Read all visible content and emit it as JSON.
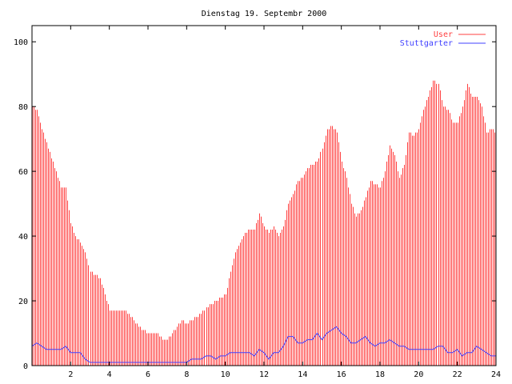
{
  "chart_data": {
    "type": "bar",
    "title": "Dienstag 19. Septembr 2000",
    "xlabel": "",
    "ylabel": "",
    "xlim": [
      0,
      24
    ],
    "ylim": [
      0,
      105
    ],
    "x_ticks": [
      2,
      4,
      6,
      8,
      10,
      12,
      14,
      16,
      18,
      20,
      22,
      24
    ],
    "y_ticks": [
      0,
      20,
      40,
      60,
      80,
      100
    ],
    "legend_position": "top-right",
    "x_step_hours": 0.25,
    "series": [
      {
        "name": "User",
        "style": "impulses",
        "color": "#ff4040",
        "values": [
          80,
          79,
          73,
          69,
          64,
          60,
          55,
          55,
          44,
          40,
          38,
          35,
          29,
          28,
          27,
          22,
          17,
          17,
          17,
          17,
          16,
          14,
          12,
          11,
          10,
          10,
          10,
          8,
          8,
          10,
          12,
          14,
          13,
          14,
          15,
          16,
          18,
          19,
          20,
          21,
          22,
          29,
          35,
          38,
          41,
          42,
          42,
          47,
          43,
          41,
          43,
          40,
          43,
          50,
          53,
          57,
          58,
          61,
          62,
          63,
          67,
          73,
          74,
          72,
          63,
          58,
          50,
          46,
          48,
          52,
          57,
          56,
          55,
          60,
          68,
          65,
          58,
          62,
          72,
          71,
          73,
          79,
          83,
          88,
          87,
          80,
          79,
          75,
          75,
          80,
          87,
          83,
          83,
          80,
          72,
          73,
          72
        ]
      },
      {
        "name": "Stuttgarter",
        "style": "line",
        "color": "#4040ff",
        "values": [
          6,
          7,
          6,
          5,
          5,
          5,
          5,
          6,
          4,
          4,
          4,
          2,
          1,
          1,
          1,
          1,
          1,
          1,
          1,
          1,
          1,
          1,
          1,
          1,
          1,
          1,
          1,
          1,
          1,
          1,
          1,
          1,
          1,
          2,
          2,
          2,
          3,
          3,
          2,
          3,
          3,
          4,
          4,
          4,
          4,
          4,
          3,
          5,
          4,
          2,
          4,
          4,
          6,
          9,
          9,
          7,
          7,
          8,
          8,
          10,
          8,
          10,
          11,
          12,
          10,
          9,
          7,
          7,
          8,
          9,
          7,
          6,
          7,
          7,
          8,
          7,
          6,
          6,
          5,
          5,
          5,
          5,
          5,
          5,
          6,
          6,
          4,
          4,
          5,
          3,
          4,
          4,
          6,
          5,
          4,
          3,
          3
        ]
      }
    ]
  }
}
